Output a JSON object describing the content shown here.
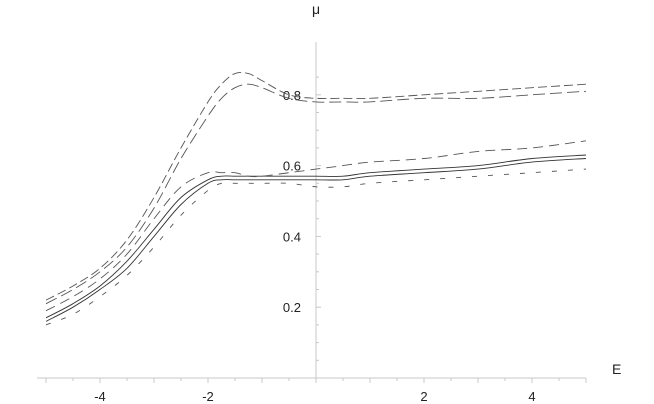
{
  "chart_data": {
    "type": "line",
    "xlabel": "E",
    "ylabel": "",
    "xlim": [
      -5,
      5
    ],
    "ylim": [
      0,
      0.9
    ],
    "x_ticks": [
      -4,
      -2,
      2,
      4
    ],
    "y_ticks": [
      0.2,
      0.4,
      0.6,
      0.8
    ],
    "x_tick_labels": [
      "-4",
      "-2",
      "2",
      "4"
    ],
    "y_tick_labels": [
      "0.2",
      "0.4",
      "0.6",
      "0.8"
    ],
    "grid": false,
    "x": [
      -5,
      -4.5,
      -4,
      -3.5,
      -3,
      -2.5,
      -2,
      -1.75,
      -1.5,
      -1.25,
      -1,
      -0.5,
      0,
      0.5,
      1,
      2,
      3,
      4,
      5
    ],
    "series": [
      {
        "style": "dashed-upper",
        "values": [
          0.22,
          0.26,
          0.31,
          0.39,
          0.51,
          0.65,
          0.78,
          0.83,
          0.86,
          0.86,
          0.84,
          0.8,
          0.79,
          0.79,
          0.79,
          0.8,
          0.81,
          0.82,
          0.83
        ]
      },
      {
        "style": "dashed-upper-2",
        "values": [
          0.21,
          0.25,
          0.3,
          0.37,
          0.48,
          0.62,
          0.74,
          0.79,
          0.82,
          0.83,
          0.82,
          0.79,
          0.78,
          0.78,
          0.78,
          0.79,
          0.79,
          0.8,
          0.81
        ]
      },
      {
        "style": "solid",
        "values": [
          0.17,
          0.21,
          0.26,
          0.33,
          0.42,
          0.51,
          0.56,
          0.57,
          0.57,
          0.57,
          0.57,
          0.57,
          0.57,
          0.57,
          0.58,
          0.59,
          0.6,
          0.62,
          0.63
        ]
      },
      {
        "style": "solid-2",
        "values": [
          0.16,
          0.2,
          0.25,
          0.31,
          0.4,
          0.49,
          0.55,
          0.56,
          0.56,
          0.56,
          0.56,
          0.56,
          0.56,
          0.56,
          0.57,
          0.58,
          0.59,
          0.61,
          0.62
        ]
      },
      {
        "style": "dashed-mid",
        "values": [
          0.19,
          0.23,
          0.28,
          0.35,
          0.45,
          0.54,
          0.58,
          0.58,
          0.58,
          0.57,
          0.57,
          0.58,
          0.59,
          0.6,
          0.61,
          0.62,
          0.64,
          0.65,
          0.67
        ]
      },
      {
        "style": "dashed-low",
        "values": [
          0.15,
          0.18,
          0.23,
          0.29,
          0.37,
          0.46,
          0.53,
          0.55,
          0.55,
          0.55,
          0.55,
          0.55,
          0.54,
          0.54,
          0.55,
          0.56,
          0.57,
          0.58,
          0.59
        ]
      }
    ]
  }
}
